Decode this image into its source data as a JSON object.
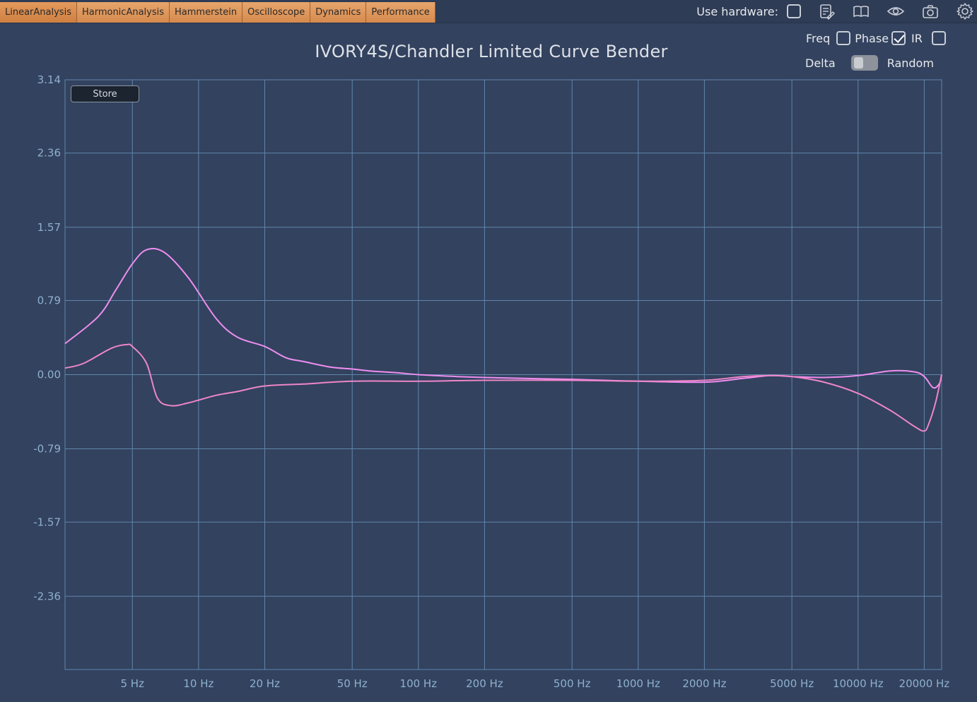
{
  "tabs": [
    {
      "label": "LinearAnalysis"
    },
    {
      "label": "HarmonicAnalysis"
    },
    {
      "label": "Hammerstein"
    },
    {
      "label": "Oscilloscope"
    },
    {
      "label": "Dynamics"
    },
    {
      "label": "Performance"
    }
  ],
  "header": {
    "use_hardware_label": "Use hardware:",
    "use_hardware_checked": false,
    "icons": [
      "notes-icon",
      "book-icon",
      "eye-icon",
      "camera-icon",
      "gear-icon"
    ]
  },
  "controls": {
    "freq_label": "Freq",
    "freq_checked": false,
    "phase_label": "Phase",
    "phase_checked": true,
    "ir_label": "IR",
    "ir_checked": false,
    "delta_label": "Delta",
    "random_label": "Random"
  },
  "store_label": "Store",
  "chart_data": {
    "type": "line",
    "title": "IVORY4S/Chandler Limited Curve Bender",
    "xlabel": "",
    "ylabel": "",
    "xscale": "log",
    "xlim": [
      2.47,
      24000
    ],
    "ylim": [
      -3.14,
      3.14
    ],
    "grid": true,
    "y_ticks": [
      "3.14",
      "2.36",
      "1.57",
      "0.79",
      "0.00",
      "-0.79",
      "-1.57",
      "-2.36"
    ],
    "y_tick_values": [
      3.14,
      2.36,
      1.57,
      0.79,
      0.0,
      -0.79,
      -1.57,
      -2.36
    ],
    "x_ticks": [
      "5 Hz",
      "10 Hz",
      "20 Hz",
      "50 Hz",
      "100 Hz",
      "200 Hz",
      "500 Hz",
      "1000 Hz",
      "2000 Hz",
      "5000 Hz",
      "10000 Hz",
      "20000 Hz"
    ],
    "x_tick_values": [
      5,
      10,
      20,
      50,
      100,
      200,
      500,
      1000,
      2000,
      5000,
      10000,
      20000
    ],
    "series": [
      {
        "color": "#ee8ef0",
        "x": [
          2.47,
          3.5,
          4.2,
          5.0,
          5.8,
          7.0,
          9.0,
          12,
          15,
          20,
          25,
          30,
          40,
          50,
          60,
          80,
          100,
          150,
          200,
          300,
          500,
          1000,
          2000,
          3000,
          4000,
          5000,
          7000,
          10000,
          14000,
          18000,
          20000,
          22000,
          23500,
          24000
        ],
        "y": [
          0.33,
          0.62,
          0.9,
          1.18,
          1.33,
          1.3,
          1.03,
          0.6,
          0.4,
          0.3,
          0.18,
          0.14,
          0.08,
          0.06,
          0.04,
          0.02,
          0.0,
          -0.02,
          -0.03,
          -0.04,
          -0.05,
          -0.07,
          -0.08,
          -0.04,
          -0.01,
          -0.02,
          -0.03,
          -0.01,
          0.04,
          0.03,
          -0.02,
          -0.14,
          -0.09,
          0.0
        ]
      },
      {
        "color": "#ee86c8",
        "x": [
          2.47,
          3.0,
          4.0,
          4.7,
          5.0,
          5.8,
          6.5,
          7.5,
          9,
          12,
          15,
          20,
          30,
          50,
          100,
          200,
          500,
          1000,
          2000,
          3000,
          4000,
          5000,
          7000,
          10000,
          14000,
          18000,
          20000,
          21000,
          22500,
          24000
        ],
        "y": [
          0.07,
          0.12,
          0.28,
          0.32,
          0.3,
          0.12,
          -0.25,
          -0.33,
          -0.3,
          -0.22,
          -0.18,
          -0.12,
          -0.1,
          -0.07,
          -0.07,
          -0.06,
          -0.06,
          -0.07,
          -0.06,
          -0.02,
          -0.01,
          -0.02,
          -0.08,
          -0.2,
          -0.38,
          -0.55,
          -0.6,
          -0.52,
          -0.3,
          0.0
        ]
      }
    ]
  }
}
